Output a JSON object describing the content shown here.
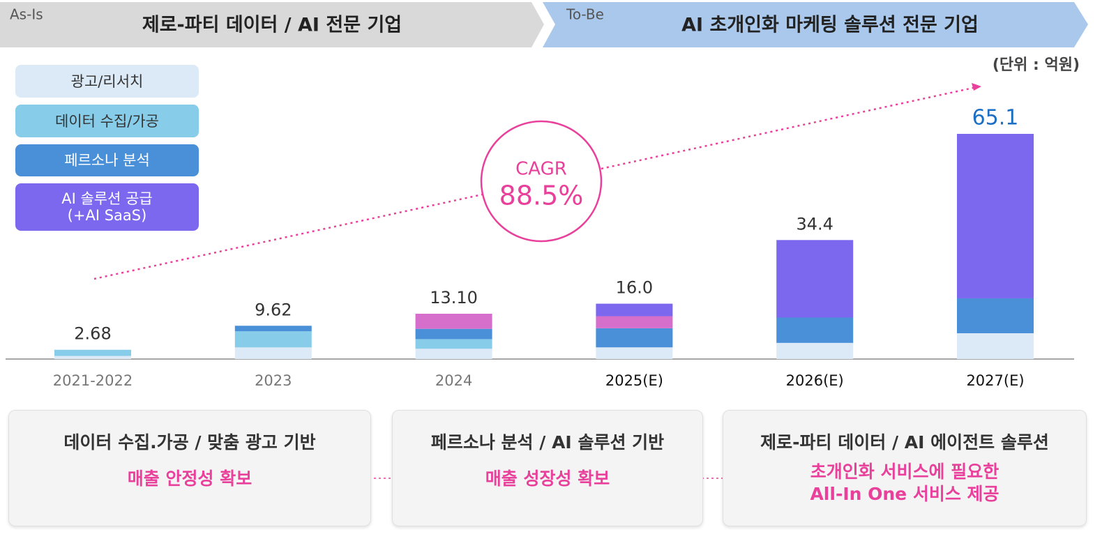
{
  "header": {
    "as_is_tag": "As-Is",
    "as_is_title": "제로-파티 데이터 / AI 전문 기업",
    "to_be_tag": "To-Be",
    "to_be_title": "AI 초개인화 마케팅 솔루션 전문 기업"
  },
  "chart_data": {
    "type": "stacked_bar",
    "unit_label": "(단위 : 억원)",
    "categories": [
      "2021-2022",
      "2023",
      "2024",
      "2025(E)",
      "2026(E)",
      "2027(E)"
    ],
    "x_label_colors": [
      "#777777",
      "#777777",
      "#777777",
      "#111111",
      "#111111",
      "#111111"
    ],
    "series": [
      {
        "name": "광고/리서치",
        "color": "#dce9f7",
        "values": [
          0.9,
          3.37,
          2.97,
          3.38,
          4.67,
          7.46
        ]
      },
      {
        "name": "데이터 수집/가공",
        "color": "#87cdea",
        "values": [
          1.78,
          4.65,
          2.79,
          null,
          null,
          null
        ]
      },
      {
        "name": "페르소나 분석",
        "color": "#4a90d9",
        "values": [
          null,
          1.6,
          2.97,
          5.52,
          7.32,
          10.08
        ]
      },
      {
        "name": null,
        "color": "#d66fcb",
        "values": [
          null,
          null,
          4.37,
          3.49,
          null,
          null
        ]
      },
      {
        "name": "AI 솔루션 공급\n(+AI SaaS)",
        "color": "#7b68ee",
        "values": [
          null,
          null,
          null,
          3.61,
          22.41,
          47.56
        ]
      }
    ],
    "totals": [
      2.68,
      9.62,
      13.1,
      16.0,
      34.4,
      65.1
    ],
    "total_labels": [
      "2.68",
      "9.62",
      "13.10",
      "16.0",
      "34.4",
      "65.1"
    ],
    "total_label_colors": [
      "#333333",
      "#333333",
      "#333333",
      "#333333",
      "#333333",
      "#1a6fc4"
    ],
    "annotation": {
      "label": "CAGR",
      "value_label": "88.5%"
    }
  },
  "boxes": [
    {
      "title": "데이터 수집.가공 / 맞춤 광고 기반",
      "subtitle": "매출 안정성 확보"
    },
    {
      "title": "페르소나 분석 / AI 솔루션 기반",
      "subtitle": "매출 성장성 확보"
    },
    {
      "title": "제로-파티 데이터 / AI 에이전트 솔루션",
      "subtitle": "초개인화 서비스에 필요한\nAll-In One 서비스 제공"
    }
  ]
}
